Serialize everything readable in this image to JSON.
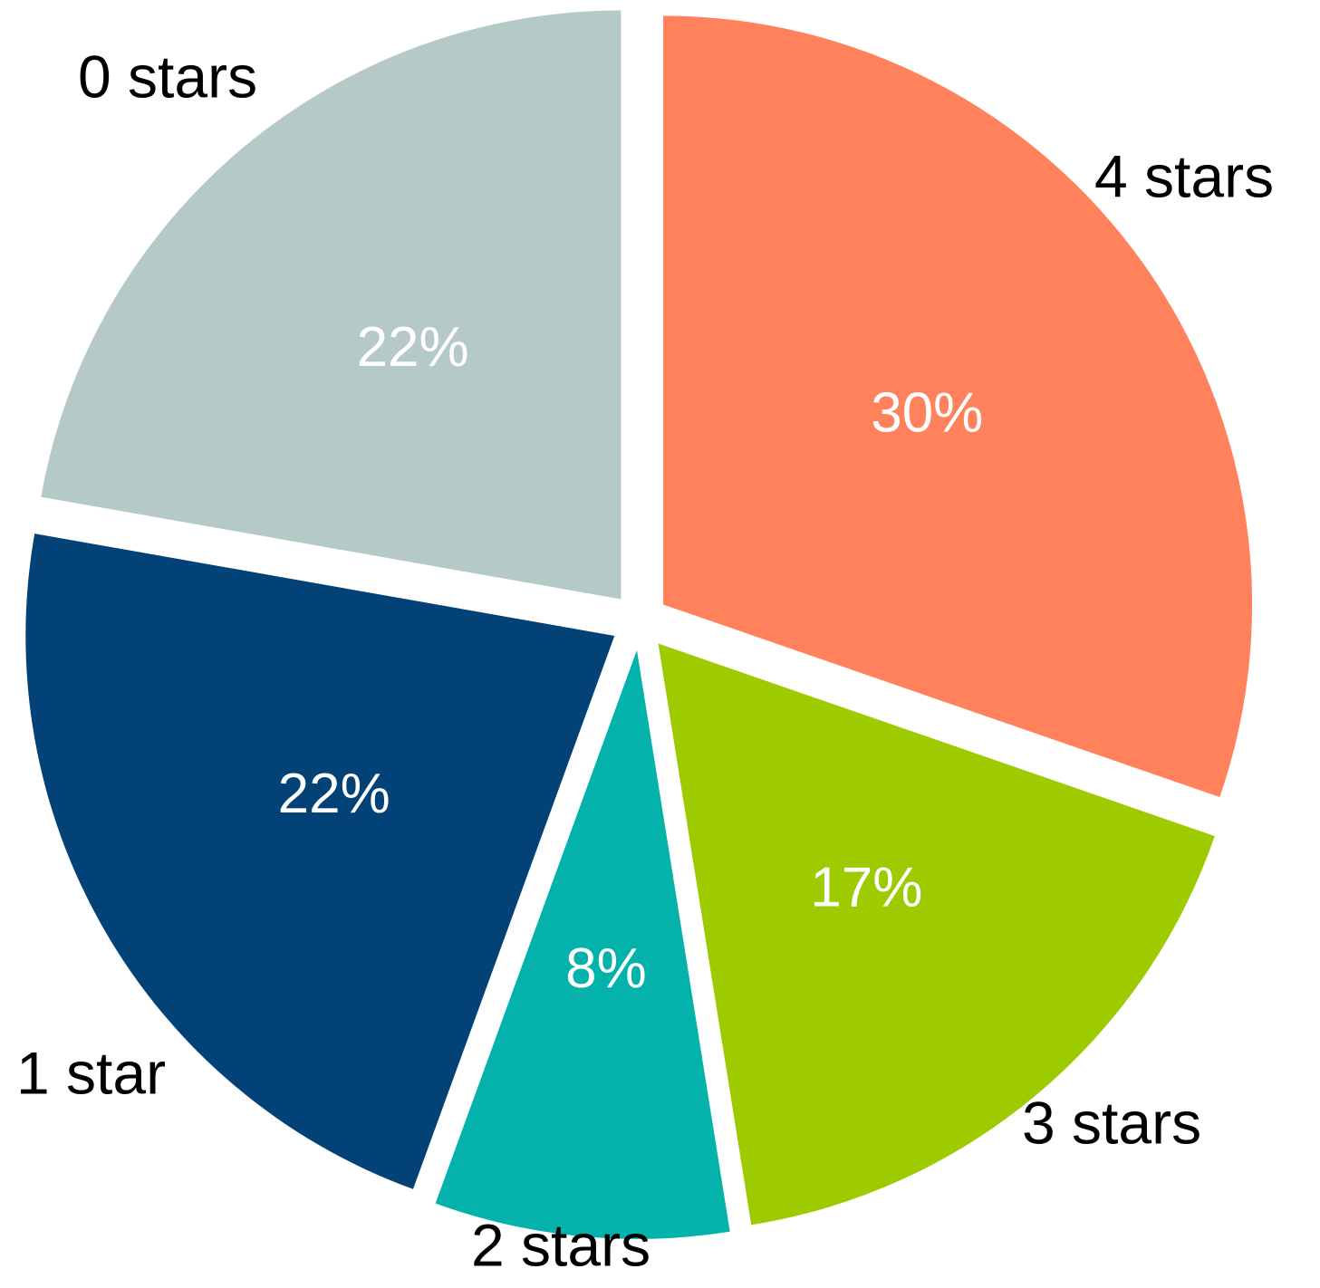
{
  "chart_data": {
    "type": "pie",
    "start_angle_deg": 0,
    "direction": "clockwise",
    "exploded": true,
    "slices": [
      {
        "label": "4 stars",
        "value": 30,
        "value_label": "30%",
        "color": "#FF825C"
      },
      {
        "label": "3 stars",
        "value": 17,
        "value_label": "17%",
        "color": "#9ECB00"
      },
      {
        "label": "2 stars",
        "value": 8,
        "value_label": "8%",
        "color": "#02B2AB"
      },
      {
        "label": "1 star",
        "value": 22,
        "value_label": "22%",
        "color": "#034277"
      },
      {
        "label": "0 stars",
        "value": 22,
        "value_label": "22%",
        "color": "#B6C9C9"
      }
    ]
  }
}
